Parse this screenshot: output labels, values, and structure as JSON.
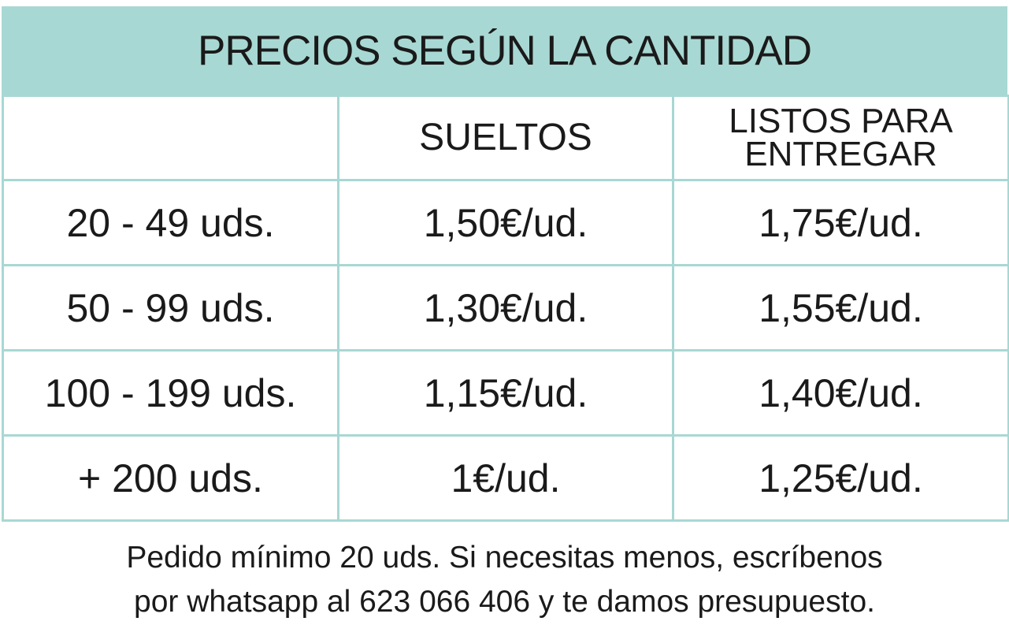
{
  "header": {
    "title": "PRECIOS SEGÚN LA CANTIDAD"
  },
  "table": {
    "columns": [
      "SUELTOS",
      "LISTOS PARA ENTREGAR"
    ],
    "rows": [
      [
        "20 - 49 uds.",
        "1,50€/ud.",
        "1,75€/ud."
      ],
      [
        "50 - 99 uds.",
        "1,30€/ud.",
        "1,55€/ud."
      ],
      [
        "100 - 199 uds.",
        "1,15€/ud.",
        "1,40€/ud."
      ],
      [
        "+ 200 uds.",
        "1€/ud.",
        "1,25€/ud."
      ]
    ]
  },
  "footer": {
    "note": [
      "Pedido mínimo 20 uds. Si necesitas menos, escríbenos",
      "por whatsapp al 623 066 406 y te damos presupuesto."
    ]
  }
}
